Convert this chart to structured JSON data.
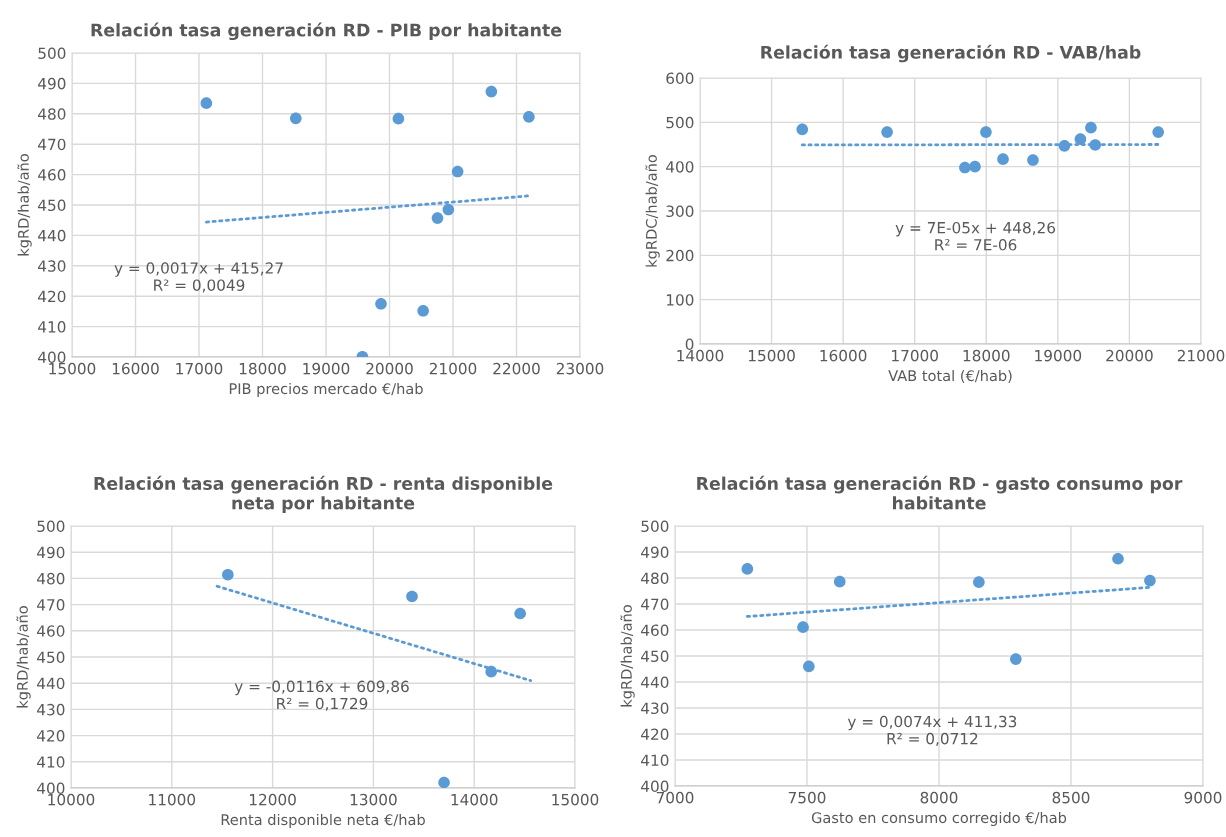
{
  "chart_data": [
    {
      "type": "scatter",
      "title": "Relación tasa generación RD - PIB por habitante",
      "xlabel": "PIB precios mercado €/hab",
      "ylabel": "kgRD/hab/año",
      "series": [
        {
          "color": "#5b9bd5",
          "marker": "circle",
          "x": [
            17116,
            18524,
            20140,
            21604,
            22195,
            21073,
            20756,
            20927,
            19866,
            20530,
            19573
          ],
          "values": [
            483.5,
            478.5,
            478.4,
            487.3,
            479.0,
            461.0,
            445.7,
            448.5,
            417.5,
            415.2,
            400.1
          ]
        },
        {
          "type": "line",
          "color": "#5b9bd5",
          "line_style": "dotted",
          "x": [
            17116,
            22195
          ],
          "values": [
            444.4,
            453.0
          ]
        }
      ],
      "xlim": [
        15000,
        23000
      ],
      "xticks": [
        15000,
        16000,
        17000,
        18000,
        19000,
        20000,
        21000,
        22000,
        23000
      ],
      "ylim": [
        400,
        500
      ],
      "yticks": [
        400,
        410,
        420,
        430,
        440,
        450,
        460,
        470,
        480,
        490,
        500
      ],
      "grid": true,
      "annotations": [
        "y = 0,0017x + 415,27\nR² = 0,0049"
      ]
    },
    {
      "type": "scatter",
      "title": "Relación tasa generación RD - VAB/hab",
      "xlabel": "VAB total (€/hab)",
      "ylabel": "kgRDC/hab/año",
      "series": [
        {
          "color": "#5b9bd5",
          "marker": "circle",
          "x": [
            15429,
            16614,
            17995,
            17701,
            17842,
            18234,
            18652,
            19092,
            19315,
            19462,
            19522,
            20402
          ],
          "values": [
            484,
            478,
            478,
            398,
            400,
            417,
            415,
            447,
            462,
            488,
            449,
            478
          ]
        },
        {
          "type": "line",
          "color": "#5b9bd5",
          "line_style": "dotted",
          "x": [
            15429,
            20402
          ],
          "values": [
            449,
            450
          ]
        }
      ],
      "xlim": [
        14000,
        21000
      ],
      "xticks": [
        14000,
        15000,
        16000,
        17000,
        18000,
        19000,
        20000,
        21000
      ],
      "ylim": [
        0,
        600
      ],
      "yticks": [
        0,
        100,
        200,
        300,
        400,
        500,
        600
      ],
      "grid": true,
      "annotations": [
        "y = 7E-05x + 448,26\nR² = 7E-06"
      ]
    },
    {
      "type": "scatter",
      "title": "Relación tasa generación RD - renta disponible\nneta por habitante",
      "xlabel": "Renta disponible neta €/hab",
      "ylabel": "kgRD/hab/año",
      "series": [
        {
          "color": "#5b9bd5",
          "marker": "circle",
          "x": [
            11556,
            13383,
            14456,
            14169,
            13701
          ],
          "values": [
            481.4,
            473.1,
            466.6,
            444.4,
            402.1
          ]
        },
        {
          "type": "line",
          "color": "#5b9bd5",
          "line_style": "dotted",
          "x": [
            11450,
            14560
          ],
          "values": [
            477.0,
            441.0
          ]
        }
      ],
      "xlim": [
        10000,
        15000
      ],
      "xticks": [
        10000,
        11000,
        12000,
        13000,
        14000,
        15000
      ],
      "ylim": [
        400,
        500
      ],
      "yticks": [
        400,
        410,
        420,
        430,
        440,
        450,
        460,
        470,
        480,
        490,
        500
      ],
      "grid": true,
      "annotations": [
        "y = -0,0116x + 609,86\nR² = 0,1729"
      ]
    },
    {
      "type": "scatter",
      "title": "Relación tasa generación RD - gasto consumo por\nhabitante",
      "xlabel": "Gasto en consumo corregido €/hab",
      "ylabel": "kgRD/hab/año",
      "series": [
        {
          "color": "#5b9bd5",
          "marker": "circle",
          "x": [
            7274,
            7624,
            8151,
            8678,
            8799,
            7485,
            7507,
            8291
          ],
          "values": [
            483.5,
            478.6,
            478.4,
            487.4,
            479.0,
            461.1,
            446.0,
            448.8
          ]
        },
        {
          "type": "line",
          "color": "#5b9bd5",
          "line_style": "dotted",
          "x": [
            7274,
            8799
          ],
          "values": [
            465.2,
            476.4
          ]
        }
      ],
      "xlim": [
        7000,
        9000
      ],
      "xticks": [
        7000,
        7500,
        8000,
        8500,
        9000
      ],
      "ylim": [
        400,
        500
      ],
      "yticks": [
        400,
        410,
        420,
        430,
        440,
        450,
        460,
        470,
        480,
        490,
        500
      ],
      "grid": true,
      "annotations": [
        "y = 0,0074x + 411,33\nR² = 0,0712"
      ]
    }
  ]
}
